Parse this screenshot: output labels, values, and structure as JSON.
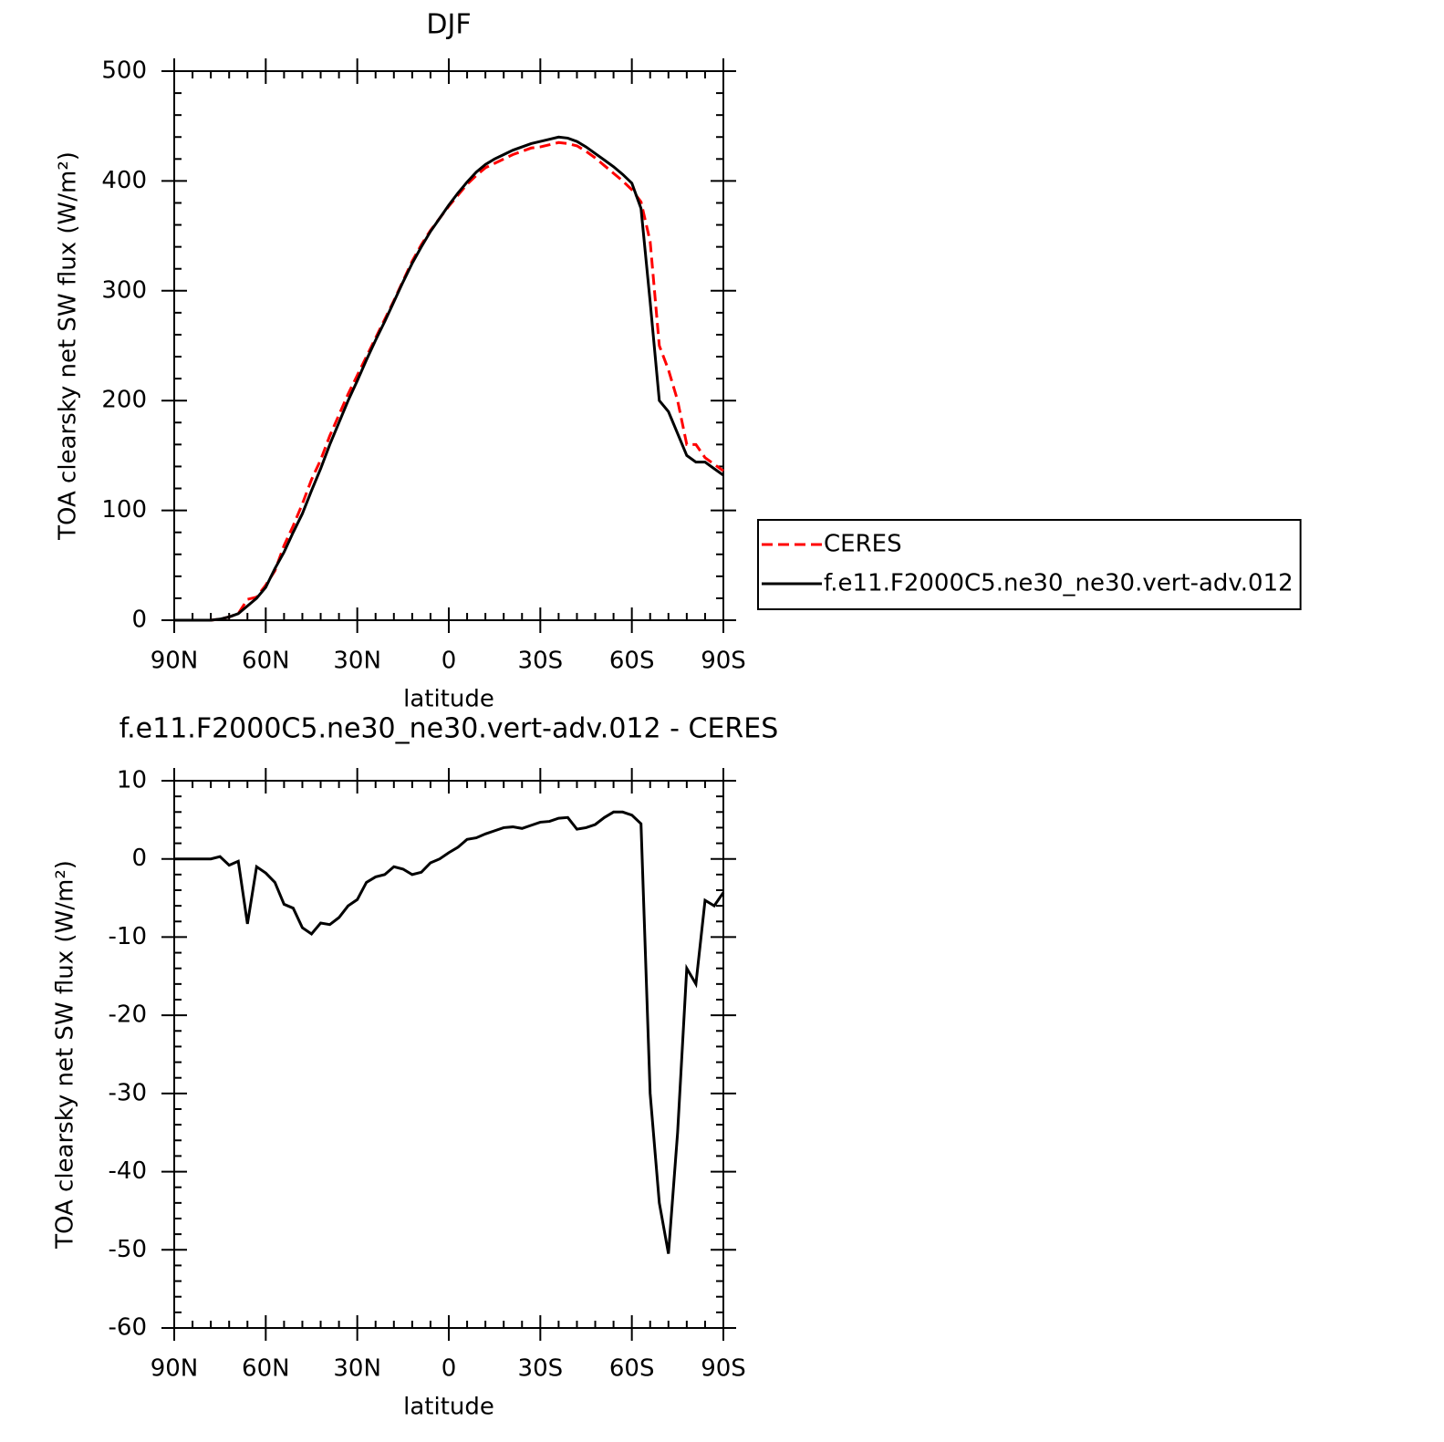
{
  "chart_data": [
    {
      "type": "line",
      "title": "DJF",
      "x_label": "latitude",
      "y_label": "TOA clearsky net SW flux (W/m²)",
      "x": [
        90,
        87,
        84,
        81,
        78,
        75,
        72,
        69,
        66,
        63,
        60,
        57,
        54,
        51,
        48,
        45,
        42,
        39,
        36,
        33,
        30,
        27,
        24,
        21,
        18,
        15,
        12,
        9,
        6,
        3,
        0,
        -3,
        -6,
        -9,
        -12,
        -15,
        -18,
        -21,
        -24,
        -27,
        -30,
        -33,
        -36,
        -39,
        -42,
        -45,
        -48,
        -51,
        -54,
        -57,
        -60,
        -63,
        -66,
        -69,
        -72,
        -75,
        -78,
        -81,
        -84,
        -87,
        -90
      ],
      "xlim": [
        90,
        -90
      ],
      "xticks": [
        {
          "value": 90,
          "label": "90N"
        },
        {
          "value": 60,
          "label": "60N"
        },
        {
          "value": 30,
          "label": "30N"
        },
        0,
        {
          "value": -30,
          "label": "30S"
        },
        {
          "value": -60,
          "label": "60S"
        },
        {
          "value": -90,
          "label": "90S"
        }
      ],
      "ylim": [
        0,
        500
      ],
      "yticks": [
        0,
        100,
        200,
        300,
        400,
        500
      ],
      "legend": "right",
      "series": [
        {
          "name": "CERES",
          "color": "#ff0000",
          "dash": "dashed",
          "values": [
            0,
            0,
            0,
            0,
            0,
            1,
            3,
            6,
            19,
            21,
            32,
            45,
            68,
            86,
            106,
            128,
            146,
            168,
            187,
            206,
            223,
            240,
            257,
            274,
            291,
            309,
            327,
            342,
            355,
            366,
            377,
            387,
            397,
            405,
            412,
            416,
            420,
            424,
            427,
            430,
            431,
            433,
            435,
            434,
            432,
            427,
            421,
            414,
            407,
            400,
            392,
            381,
            345,
            250,
            228,
            200,
            160,
            160,
            148,
            142,
            136
          ]
        },
        {
          "name": "f.e11.F2000C5.ne30_ne30.vert-adv.012",
          "color": "#000000",
          "dash": "solid",
          "values": [
            0,
            0,
            0,
            0,
            0,
            1,
            3,
            6,
            13,
            20,
            30,
            47,
            62,
            80,
            97,
            118,
            138,
            160,
            180,
            200,
            218,
            237,
            255,
            272,
            290,
            308,
            325,
            340,
            354,
            366,
            378,
            389,
            399,
            408,
            415,
            420,
            424,
            428,
            431,
            434,
            436,
            438,
            440,
            439,
            436,
            431,
            425,
            419,
            413,
            406,
            398,
            375,
            290,
            200,
            190,
            170,
            150,
            144,
            144,
            138,
            132
          ]
        }
      ]
    },
    {
      "type": "line",
      "title": "f.e11.F2000C5.ne30_ne30.vert-adv.012 - CERES",
      "x_label": "latitude",
      "y_label": "TOA clearsky net SW flux (W/m²)",
      "x": [
        90,
        87,
        84,
        81,
        78,
        75,
        72,
        69,
        66,
        63,
        60,
        57,
        54,
        51,
        48,
        45,
        42,
        39,
        36,
        33,
        30,
        27,
        24,
        21,
        18,
        15,
        12,
        9,
        6,
        3,
        0,
        -3,
        -6,
        -9,
        -12,
        -15,
        -18,
        -21,
        -24,
        -27,
        -30,
        -33,
        -36,
        -39,
        -42,
        -45,
        -48,
        -51,
        -54,
        -57,
        -60,
        -63,
        -66,
        -69,
        -72,
        -75,
        -78,
        -81,
        -84,
        -87,
        -90
      ],
      "xlim": [
        90,
        -90
      ],
      "xticks": [
        {
          "value": 90,
          "label": "90N"
        },
        {
          "value": 60,
          "label": "60N"
        },
        {
          "value": 30,
          "label": "30N"
        },
        0,
        {
          "value": -30,
          "label": "30S"
        },
        {
          "value": -60,
          "label": "60S"
        },
        {
          "value": -90,
          "label": "90S"
        }
      ],
      "ylim": [
        -60,
        10
      ],
      "yticks": [
        -60,
        -50,
        -40,
        -30,
        -20,
        -10,
        0,
        10
      ],
      "series": [
        {
          "color": "#000000",
          "dash": "solid",
          "values": [
            0,
            0,
            0,
            0,
            0,
            0.3,
            -0.8,
            -0.3,
            -8.3,
            -1,
            -1.8,
            -3,
            -5.8,
            -6.3,
            -8.8,
            -9.6,
            -8.2,
            -8.4,
            -7.5,
            -6,
            -5.2,
            -3,
            -2.3,
            -2,
            -1,
            -1.3,
            -2,
            -1.7,
            -0.5,
            0,
            0.8,
            1.5,
            2.5,
            2.7,
            3.2,
            3.6,
            4,
            4.1,
            3.9,
            4.3,
            4.7,
            4.8,
            5.2,
            5.3,
            3.8,
            4,
            4.4,
            5.3,
            6,
            6,
            5.6,
            4.5,
            -30,
            -44,
            -50.5,
            -35,
            -14,
            -16,
            -5.3,
            -6,
            -4.3
          ]
        }
      ]
    }
  ]
}
